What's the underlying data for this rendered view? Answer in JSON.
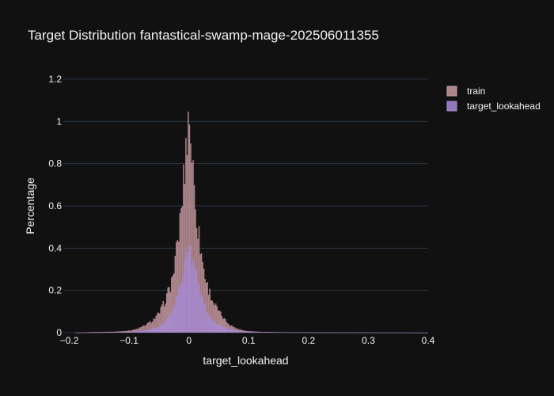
{
  "chart_data": {
    "type": "bar",
    "title": "Target Distribution fantastical-swamp-mage-202506011355",
    "xlabel": "target_lookahead",
    "ylabel": "Percentage",
    "xlim": [
      -0.21,
      0.4
    ],
    "ylim": [
      0,
      1.2
    ],
    "x_ticks": [
      -0.2,
      -0.1,
      0,
      0.1,
      0.2,
      0.3,
      0.4
    ],
    "x_tick_labels": [
      "−0.2",
      "−0.1",
      "0",
      "0.1",
      "0.2",
      "0.3",
      "0.4"
    ],
    "y_ticks": [
      0,
      0.2,
      0.4,
      0.6,
      0.8,
      1,
      1.2
    ],
    "y_tick_labels": [
      "0",
      "0.2",
      "0.4",
      "0.6",
      "0.8",
      "1",
      "1.2"
    ],
    "grid": true,
    "legend_position": "top-right",
    "colors": {
      "background": "#111111",
      "grid": "#283442",
      "text": "#f2f2f2",
      "train": "#c99aa2",
      "target_lookahead": "#a88bd6"
    },
    "bin_width": 0.002,
    "series": [
      {
        "name": "train",
        "color": "#c99aa2",
        "x": [
          -0.19,
          -0.16,
          -0.12,
          -0.1,
          -0.09,
          -0.08,
          -0.07,
          -0.06,
          -0.05,
          -0.04,
          -0.03,
          -0.025,
          -0.02,
          -0.015,
          -0.01,
          -0.006,
          -0.003,
          0,
          0.003,
          0.006,
          0.01,
          0.015,
          0.02,
          0.025,
          0.03,
          0.04,
          0.05,
          0.06,
          0.07,
          0.08,
          0.09,
          0.1,
          0.12,
          0.16,
          0.2,
          0.3,
          0.4
        ],
        "values": [
          0,
          0.003,
          0.005,
          0.01,
          0.015,
          0.025,
          0.04,
          0.06,
          0.09,
          0.15,
          0.23,
          0.3,
          0.4,
          0.52,
          0.68,
          0.82,
          0.95,
          1.05,
          0.94,
          0.8,
          0.65,
          0.5,
          0.39,
          0.3,
          0.23,
          0.15,
          0.1,
          0.06,
          0.035,
          0.02,
          0.012,
          0.007,
          0.004,
          0.002,
          0.001,
          0.0005,
          0
        ]
      },
      {
        "name": "target_lookahead",
        "color": "#a88bd6",
        "x": [
          -0.19,
          -0.12,
          -0.09,
          -0.07,
          -0.05,
          -0.04,
          -0.03,
          -0.02,
          -0.012,
          -0.006,
          0,
          0.006,
          0.012,
          0.02,
          0.03,
          0.04,
          0.05,
          0.07,
          0.09,
          0.12,
          0.2,
          0.4
        ],
        "values": [
          0,
          0.002,
          0.006,
          0.012,
          0.03,
          0.05,
          0.09,
          0.17,
          0.26,
          0.34,
          0.4,
          0.35,
          0.27,
          0.18,
          0.1,
          0.06,
          0.035,
          0.015,
          0.007,
          0.003,
          0.001,
          0
        ]
      }
    ]
  }
}
